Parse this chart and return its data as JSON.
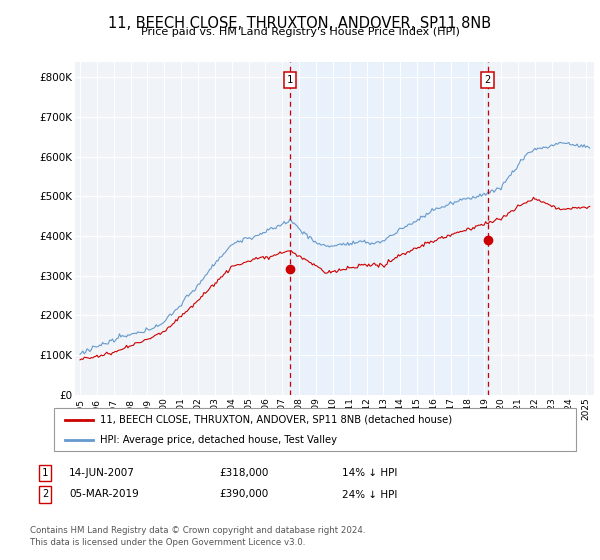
{
  "title": "11, BEECH CLOSE, THRUXTON, ANDOVER, SP11 8NB",
  "subtitle": "Price paid vs. HM Land Registry's House Price Index (HPI)",
  "ylabel_ticks": [
    "£0",
    "£100K",
    "£200K",
    "£300K",
    "£400K",
    "£500K",
    "£600K",
    "£700K",
    "£800K"
  ],
  "ytick_values": [
    0,
    100000,
    200000,
    300000,
    400000,
    500000,
    600000,
    700000,
    800000
  ],
  "ylim": [
    0,
    840000
  ],
  "xlim_start": 1994.7,
  "xlim_end": 2025.5,
  "sale1_price": 318000,
  "sale1_x": 2007.45,
  "sale2_price": 390000,
  "sale2_x": 2019.18,
  "line_red_color": "#cc0000",
  "line_blue_color": "#6699cc",
  "shade_color": "#ddeeff",
  "legend_label_red": "11, BEECH CLOSE, THRUXTON, ANDOVER, SP11 8NB (detached house)",
  "legend_label_blue": "HPI: Average price, detached house, Test Valley",
  "table_row1": [
    "1",
    "14-JUN-2007",
    "£318,000",
    "14% ↓ HPI"
  ],
  "table_row2": [
    "2",
    "05-MAR-2019",
    "£390,000",
    "24% ↓ HPI"
  ],
  "footnote1": "Contains HM Land Registry data © Crown copyright and database right 2024.",
  "footnote2": "This data is licensed under the Open Government Licence v3.0.",
  "background_color": "#ffffff",
  "plot_bg_color": "#f0f4f8"
}
